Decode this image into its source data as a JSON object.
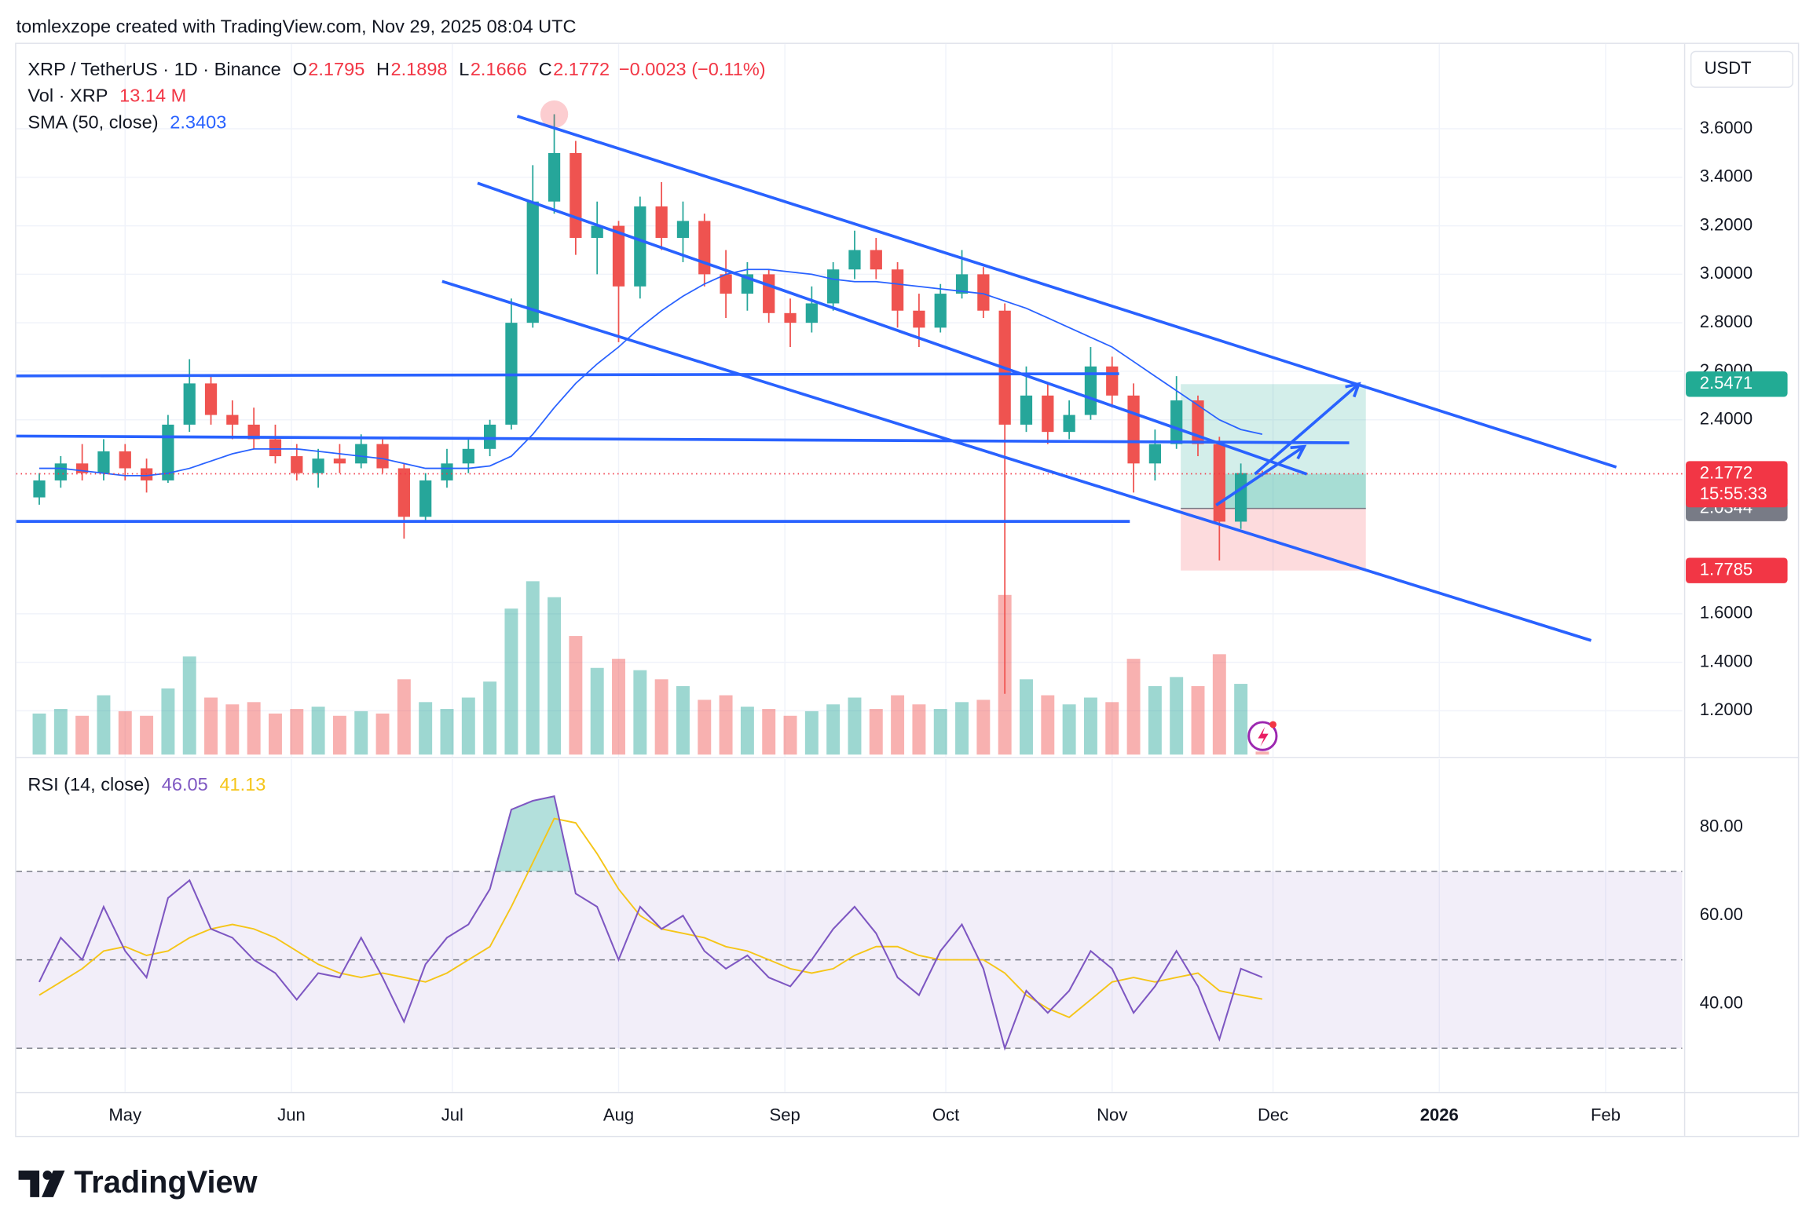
{
  "chart_data": {
    "type": "candlestick",
    "watermark": "tomlexzope created with TradingView.com, Nov 29, 2025 08:04 UTC",
    "title": "XRP / TetherUS · 1D · Binance",
    "ohlc_prefixes": [
      "O",
      "H",
      "L",
      "C"
    ],
    "change": "−0.0023 (−0.11%)",
    "currency": "USDT",
    "brand": "TradingView",
    "up_color": "#26a69a",
    "down_color": "#ef5350",
    "x": [
      105,
      109,
      113,
      117,
      121,
      125,
      129,
      133,
      137,
      141,
      145,
      149,
      153,
      157,
      161,
      165,
      169,
      173,
      177,
      181,
      185,
      189,
      193,
      197,
      201,
      205,
      209,
      213,
      217,
      221,
      225,
      229,
      233,
      237,
      241,
      245,
      249,
      253,
      257,
      261,
      265,
      269,
      273,
      277,
      281,
      285,
      289,
      293,
      297,
      301,
      305,
      309,
      313,
      317,
      321,
      325,
      329,
      333
    ],
    "open": [
      2.08,
      2.15,
      2.22,
      2.18,
      2.27,
      2.2,
      2.15,
      2.38,
      2.55,
      2.42,
      2.38,
      2.32,
      2.25,
      2.18,
      2.24,
      2.22,
      2.3,
      2.2,
      2.0,
      2.15,
      2.22,
      2.28,
      2.38,
      2.8,
      3.3,
      3.5,
      3.15,
      3.2,
      2.95,
      3.28,
      3.15,
      3.22,
      3.0,
      2.92,
      3.0,
      2.84,
      2.8,
      2.88,
      3.02,
      3.1,
      3.02,
      2.85,
      2.78,
      2.92,
      3.0,
      2.85,
      2.38,
      2.5,
      2.35,
      2.42,
      2.62,
      2.5,
      2.22,
      2.3,
      2.48,
      2.3,
      1.98,
      2.1795
    ],
    "high": [
      2.18,
      2.25,
      2.3,
      2.32,
      2.3,
      2.24,
      2.42,
      2.65,
      2.58,
      2.48,
      2.45,
      2.38,
      2.3,
      2.28,
      2.3,
      2.34,
      2.32,
      2.22,
      2.18,
      2.28,
      2.32,
      2.4,
      2.9,
      3.45,
      3.66,
      3.55,
      3.3,
      3.22,
      3.32,
      3.38,
      3.3,
      3.25,
      3.1,
      3.05,
      3.02,
      2.9,
      2.95,
      3.05,
      3.18,
      3.15,
      3.05,
      2.92,
      2.96,
      3.1,
      3.03,
      2.88,
      2.62,
      2.55,
      2.48,
      2.7,
      2.66,
      2.55,
      2.36,
      2.58,
      2.5,
      2.33,
      2.22,
      2.1898
    ],
    "low": [
      2.05,
      2.12,
      2.15,
      2.15,
      2.15,
      2.1,
      2.14,
      2.35,
      2.38,
      2.32,
      2.28,
      2.22,
      2.15,
      2.12,
      2.18,
      2.2,
      2.18,
      1.91,
      1.98,
      2.12,
      2.18,
      2.25,
      2.36,
      2.78,
      3.25,
      3.08,
      3.0,
      2.72,
      2.9,
      3.1,
      3.05,
      2.95,
      2.82,
      2.85,
      2.8,
      2.7,
      2.76,
      2.85,
      2.98,
      2.98,
      2.78,
      2.7,
      2.76,
      2.9,
      2.82,
      1.27,
      2.35,
      2.3,
      2.32,
      2.4,
      2.45,
      2.1,
      2.15,
      2.28,
      2.25,
      1.82,
      1.95,
      2.1666
    ],
    "close": [
      2.15,
      2.22,
      2.18,
      2.27,
      2.2,
      2.15,
      2.38,
      2.55,
      2.42,
      2.38,
      2.32,
      2.25,
      2.18,
      2.24,
      2.22,
      2.3,
      2.2,
      2.0,
      2.15,
      2.22,
      2.28,
      2.38,
      2.8,
      3.3,
      3.5,
      3.15,
      3.2,
      2.95,
      3.28,
      3.15,
      3.22,
      3.0,
      2.92,
      3.0,
      2.84,
      2.8,
      2.88,
      3.02,
      3.1,
      3.02,
      2.85,
      2.78,
      2.92,
      3.0,
      2.85,
      2.38,
      2.5,
      2.35,
      2.42,
      2.62,
      2.5,
      2.22,
      2.3,
      2.48,
      2.3,
      1.98,
      2.18,
      2.1772
    ],
    "volume": {
      "name": "Vol · XRP",
      "last_label": "13.14 M",
      "values": [
        180,
        200,
        170,
        260,
        190,
        170,
        290,
        430,
        250,
        220,
        230,
        180,
        200,
        210,
        170,
        190,
        180,
        330,
        230,
        200,
        250,
        320,
        640,
        760,
        690,
        520,
        380,
        420,
        370,
        330,
        300,
        240,
        260,
        210,
        200,
        170,
        190,
        220,
        250,
        200,
        260,
        220,
        200,
        230,
        240,
        700,
        330,
        260,
        220,
        250,
        230,
        420,
        300,
        340,
        300,
        440,
        310,
        13.14
      ]
    },
    "sma": {
      "name": "SMA (50, close)",
      "color": "#2962ff",
      "values": [
        2.2,
        2.2,
        2.19,
        2.18,
        2.17,
        2.17,
        2.18,
        2.2,
        2.23,
        2.26,
        2.28,
        2.28,
        2.28,
        2.27,
        2.26,
        2.25,
        2.24,
        2.22,
        2.2,
        2.2,
        2.2,
        2.21,
        2.25,
        2.34,
        2.45,
        2.55,
        2.63,
        2.7,
        2.78,
        2.85,
        2.91,
        2.96,
        3.0,
        3.02,
        3.02,
        3.01,
        3.0,
        2.98,
        2.97,
        2.97,
        2.96,
        2.95,
        2.94,
        2.93,
        2.92,
        2.89,
        2.86,
        2.82,
        2.78,
        2.74,
        2.7,
        2.64,
        2.58,
        2.52,
        2.46,
        2.4,
        2.36,
        2.3403
      ]
    },
    "rsi": {
      "name": "RSI (14, close)",
      "color": "#7e57c2",
      "values": [
        45,
        55,
        50,
        62,
        52,
        46,
        64,
        68,
        57,
        55,
        50,
        47,
        41,
        47,
        46,
        55,
        46,
        36,
        49,
        55,
        58,
        66,
        84,
        86,
        87,
        65,
        62,
        50,
        62,
        57,
        60,
        52,
        48,
        51,
        46,
        44,
        50,
        57,
        62,
        56,
        46,
        42,
        52,
        58,
        48,
        30,
        43,
        38,
        43,
        52,
        48,
        38,
        44,
        52,
        44,
        32,
        48,
        46.05
      ]
    },
    "rsi_ma": {
      "color": "#f5c518",
      "values": [
        42,
        45,
        48,
        52,
        53,
        51,
        52,
        55,
        57,
        58,
        57,
        55,
        52,
        49,
        47,
        46,
        47,
        46,
        45,
        47,
        50,
        53,
        62,
        72,
        82,
        81,
        74,
        66,
        60,
        57,
        56,
        55,
        53,
        52,
        50,
        48,
        47,
        48,
        51,
        53,
        53,
        51,
        50,
        50,
        50,
        47,
        42,
        39,
        37,
        41,
        45,
        46,
        45,
        46,
        47,
        43,
        42,
        41.13
      ]
    },
    "xlim": [
      100.7,
      411.3
    ],
    "xticks": [
      {
        "value": 121,
        "label": "May"
      },
      {
        "value": 152,
        "label": "Jun"
      },
      {
        "value": 182,
        "label": "Jul"
      },
      {
        "value": 213,
        "label": "Aug"
      },
      {
        "value": 244,
        "label": "Sep"
      },
      {
        "value": 274,
        "label": "Oct"
      },
      {
        "value": 305,
        "label": "Nov"
      },
      {
        "value": 335,
        "label": "Dec"
      },
      {
        "value": 366,
        "label": "2026"
      },
      {
        "value": 397,
        "label": "Feb"
      }
    ],
    "ylim": [
      1.01,
      3.95
    ],
    "yticks": [
      {
        "value": 1.2,
        "label": "1.2000"
      },
      {
        "value": 1.4,
        "label": "1.4000"
      },
      {
        "value": 1.6,
        "label": "1.6000"
      },
      {
        "value": 2.4,
        "label": "2.4000"
      },
      {
        "value": 2.6,
        "label": "2.6000"
      },
      {
        "value": 2.8,
        "label": "2.8000"
      },
      {
        "value": 3.0,
        "label": "3.0000"
      },
      {
        "value": 3.2,
        "label": "3.2000"
      },
      {
        "value": 3.4,
        "label": "3.4000"
      },
      {
        "value": 3.6,
        "label": "3.6000"
      }
    ],
    "rsi_ylim": [
      20.1,
      95.4
    ],
    "rsi_yticks": [
      {
        "value": 40,
        "label": "40.00"
      },
      {
        "value": 60,
        "label": "60.00"
      },
      {
        "value": 80,
        "label": "80.00"
      }
    ],
    "rsi_levels": [
      30,
      50,
      70
    ],
    "grid": true,
    "drawings": {
      "color": "#2962ff",
      "lines": [
        [
          194.1,
          3.652,
          399.0,
          2.205
        ],
        [
          186.7,
          3.376,
          341.3,
          2.176
        ],
        [
          180.1,
          2.971,
          394.3,
          1.49
        ],
        [
          100.7,
          2.581,
          306.3,
          2.59
        ],
        [
          100.7,
          2.333,
          349.2,
          2.305
        ],
        [
          100.7,
          1.981,
          308.3,
          1.981
        ]
      ],
      "arrows": [
        [
          324.4,
          2.048,
          340.8,
          2.29
        ],
        [
          331.6,
          2.176,
          351.0,
          2.548
        ]
      ],
      "position": {
        "x0": 317.8,
        "x1": 352.3,
        "target": 2.5471,
        "entry": 2.0344,
        "stop": 1.7785,
        "target_color": "#22ab94",
        "entry_color": "#787b86",
        "stop_color": "#f23645"
      }
    },
    "price_label_color": "#f23645",
    "countdown": "15:55:33"
  }
}
